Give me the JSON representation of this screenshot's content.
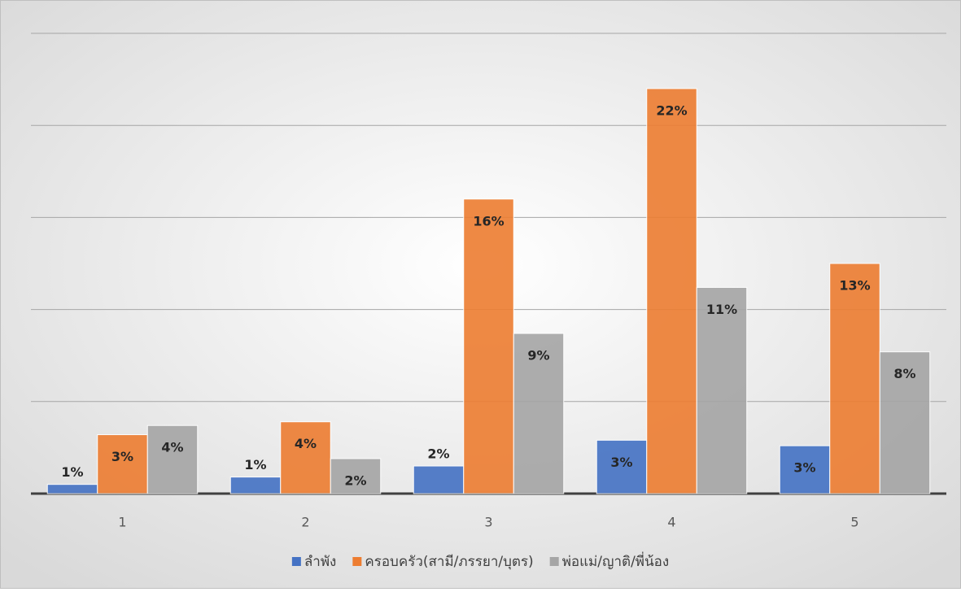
{
  "chart_data": {
    "type": "bar",
    "categories": [
      "1",
      "2",
      "3",
      "4",
      "5"
    ],
    "ylim": [
      0,
      25
    ],
    "yticks": [
      0,
      5,
      10,
      15,
      20,
      25
    ],
    "grid": true,
    "series": [
      {
        "name": "ลำพัง",
        "color": "#4472c4",
        "values": [
          0.5,
          0.9,
          1.5,
          2.9,
          2.6
        ],
        "value_labels": [
          "1%",
          "1%",
          "2%",
          "3%",
          "3%"
        ]
      },
      {
        "name": "ครอบครัว(สามี/ภรรยา/บุตร)",
        "color": "#ed7d31",
        "values": [
          3.2,
          3.9,
          16,
          22,
          12.5
        ],
        "value_labels": [
          "3%",
          "4%",
          "16%",
          "22%",
          "13%"
        ]
      },
      {
        "name": "พ่อแม่/ญาติ/พี่น้อง",
        "color": "#a5a5a5",
        "values": [
          3.7,
          1.9,
          8.7,
          11.2,
          7.7
        ],
        "value_labels": [
          "4%",
          "2%",
          "9%",
          "11%",
          "8%"
        ]
      }
    ]
  }
}
